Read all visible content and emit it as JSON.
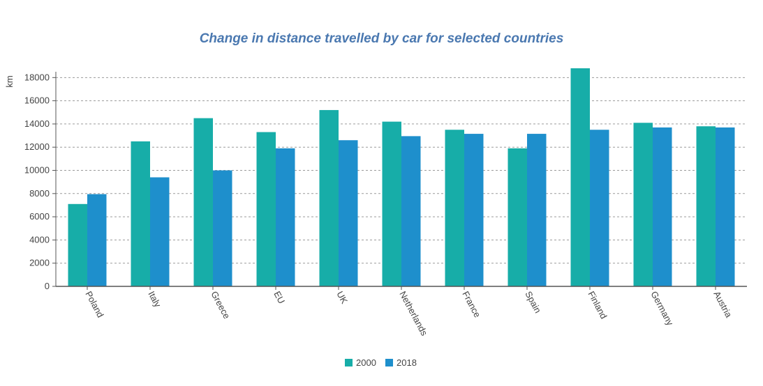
{
  "chart_data": {
    "type": "bar",
    "title": "Change in distance travelled by car for selected countries",
    "xlabel": "",
    "ylabel": "km",
    "ylim": [
      0,
      18500
    ],
    "yticks": [
      0,
      2000,
      4000,
      6000,
      8000,
      10000,
      12000,
      14000,
      16000,
      18000
    ],
    "grid": true,
    "legend": "bottom",
    "categories": [
      "Poland",
      "Italy",
      "Greece",
      "EU",
      "UK",
      "Netherlands",
      "France",
      "Spain",
      "Finland",
      "Germany",
      "Austria"
    ],
    "series": [
      {
        "name": "2000",
        "color": "#17ada8",
        "values": [
          7100,
          12500,
          14500,
          13300,
          15200,
          14200,
          13500,
          11900,
          18800,
          14100,
          13800
        ]
      },
      {
        "name": "2018",
        "color": "#1e8fcc",
        "values": [
          7950,
          9400,
          10000,
          11900,
          12600,
          12950,
          13150,
          13150,
          13500,
          13700,
          13700
        ]
      }
    ]
  }
}
